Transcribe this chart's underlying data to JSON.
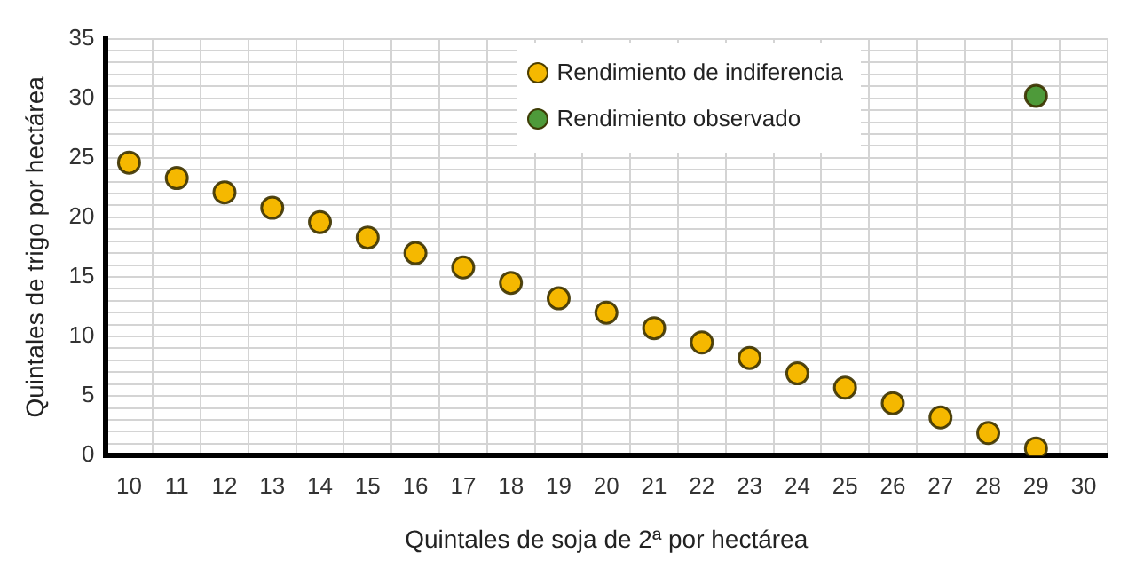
{
  "chart_data": {
    "type": "scatter",
    "xlabel": "Quintales de soja de 2ª por hectárea",
    "ylabel": "Quintales de trigo por hectárea",
    "categories": [
      "10",
      "11",
      "12",
      "13",
      "14",
      "15",
      "16",
      "17",
      "18",
      "19",
      "20",
      "21",
      "22",
      "23",
      "24",
      "25",
      "26",
      "27",
      "28",
      "29",
      "30"
    ],
    "series": [
      {
        "name": "Rendimiento de indiferencia",
        "color": "#f5b800",
        "values": [
          24.6,
          23.3,
          22.1,
          20.8,
          19.6,
          18.3,
          17.0,
          15.8,
          14.5,
          13.2,
          12.0,
          10.7,
          9.5,
          8.2,
          6.9,
          5.7,
          4.4,
          3.2,
          1.9,
          0.6,
          null
        ]
      },
      {
        "name": "Rendimiento observado",
        "color": "#4e9a3a",
        "values": [
          null,
          null,
          null,
          null,
          null,
          null,
          null,
          null,
          null,
          null,
          null,
          null,
          null,
          null,
          null,
          null,
          null,
          null,
          null,
          30.2,
          null
        ]
      }
    ],
    "ylim": [
      0,
      35
    ],
    "yticks": [
      0,
      {
        "value": 1,
        "label": null
      },
      {
        "value": 2,
        "label": null
      },
      {
        "value": 3,
        "label": null
      },
      {
        "value": 4,
        "label": null
      },
      5,
      {
        "value": 6,
        "label": null
      },
      {
        "value": 7,
        "label": null
      },
      {
        "value": 8,
        "label": null
      },
      {
        "value": 9,
        "label": null
      },
      10,
      {
        "value": 11,
        "label": null
      },
      {
        "value": 12,
        "label": null
      },
      {
        "value": 13,
        "label": null
      },
      {
        "value": 14,
        "label": null
      },
      15,
      {
        "value": 16,
        "label": null
      },
      {
        "value": 17,
        "label": null
      },
      {
        "value": 18,
        "label": null
      },
      {
        "value": 19,
        "label": null
      },
      20,
      {
        "value": 21,
        "label": null
      },
      {
        "value": 22,
        "label": null
      },
      {
        "value": 23,
        "label": null
      },
      {
        "value": 24,
        "label": null
      },
      25,
      {
        "value": 26,
        "label": null
      },
      {
        "value": 27,
        "label": null
      },
      {
        "value": 28,
        "label": null
      },
      {
        "value": 29,
        "label": null
      },
      30,
      {
        "value": 31,
        "label": null
      },
      {
        "value": 32,
        "label": null
      },
      {
        "value": 33,
        "label": null
      },
      {
        "value": 34,
        "label": null
      },
      35
    ],
    "grid": true,
    "legend": "top",
    "marker": "circle"
  }
}
